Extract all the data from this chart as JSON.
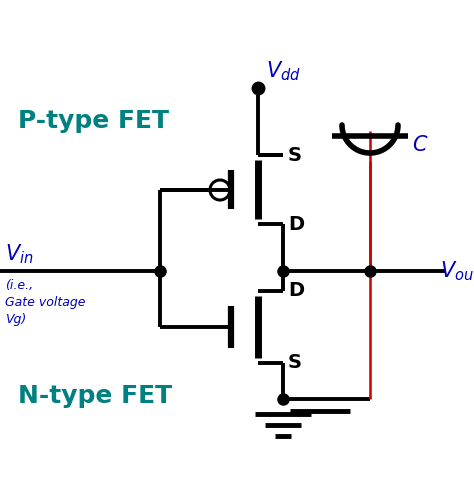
{
  "bg_color": "#ffffff",
  "line_color": "#000000",
  "red_color": "#cc0000",
  "blue_color": "#0000bb",
  "teal_color": "#008080",
  "label_ptype": "P-type FET",
  "label_ntype": "N-type FET",
  "label_vdd": "$V_{dd}$",
  "label_vin": "$V_{in}$",
  "label_vout": "$V_{out}$",
  "label_gate_note1": "(i.e.,",
  "label_gate_note2": "Gate voltage",
  "label_gate_note3": "Vg)",
  "label_C": "$C$",
  "label_S_top": "S",
  "label_D_top": "D",
  "label_D_bot": "D",
  "label_S_bot": "S",
  "figsize": [
    4.74,
    4.91
  ],
  "dpi": 100
}
